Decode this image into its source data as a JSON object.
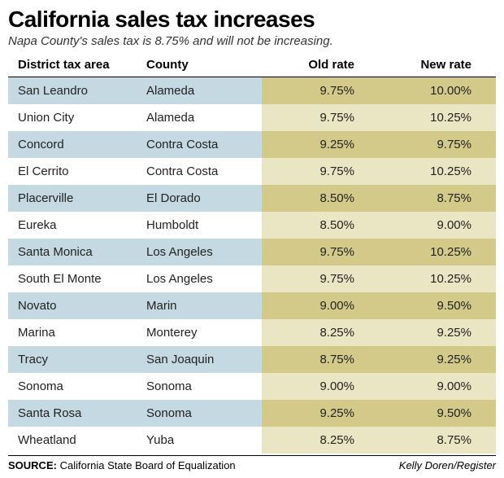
{
  "title": "California sales tax increases",
  "subtitle": "Napa County's sales tax is 8.75% and will not be increasing.",
  "columns": [
    "District tax area",
    "County",
    "Old rate",
    "New rate"
  ],
  "rows": [
    {
      "district": "San Leandro",
      "county": "Alameda",
      "old": "9.75%",
      "new": "10.00%"
    },
    {
      "district": "Union City",
      "county": "Alameda",
      "old": "9.75%",
      "new": "10.25%"
    },
    {
      "district": "Concord",
      "county": "Contra Costa",
      "old": "9.25%",
      "new": "9.75%"
    },
    {
      "district": "El Cerrito",
      "county": "Contra Costa",
      "old": "9.75%",
      "new": "10.25%"
    },
    {
      "district": "Placerville",
      "county": "El Dorado",
      "old": "8.50%",
      "new": "8.75%"
    },
    {
      "district": "Eureka",
      "county": "Humboldt",
      "old": "8.50%",
      "new": "9.00%"
    },
    {
      "district": "Santa Monica",
      "county": "Los Angeles",
      "old": "9.75%",
      "new": "10.25%"
    },
    {
      "district": "South El Monte",
      "county": "Los Angeles",
      "old": "9.75%",
      "new": "10.25%"
    },
    {
      "district": "Novato",
      "county": "Marin",
      "old": "9.00%",
      "new": "9.50%"
    },
    {
      "district": "Marina",
      "county": "Monterey",
      "old": "8.25%",
      "new": "9.25%"
    },
    {
      "district": "Tracy",
      "county": "San Joaquin",
      "old": "8.75%",
      "new": "9.25%"
    },
    {
      "district": "Sonoma",
      "county": "Sonoma",
      "old": "9.00%",
      "new": "9.00%"
    },
    {
      "district": "Santa Rosa",
      "county": "Sonoma",
      "old": "9.25%",
      "new": "9.50%"
    },
    {
      "district": "Wheatland",
      "county": "Yuba",
      "old": "8.25%",
      "new": "8.75%"
    }
  ],
  "source_label": "SOURCE:",
  "source_text": "California State Board of Equalization",
  "credit": "Kelly Doren/Register",
  "colors": {
    "row_odd_left": "#c5d9e2",
    "row_even_left": "#ffffff",
    "row_odd_right": "#d3ca8a",
    "row_even_right": "#eae6c3"
  }
}
